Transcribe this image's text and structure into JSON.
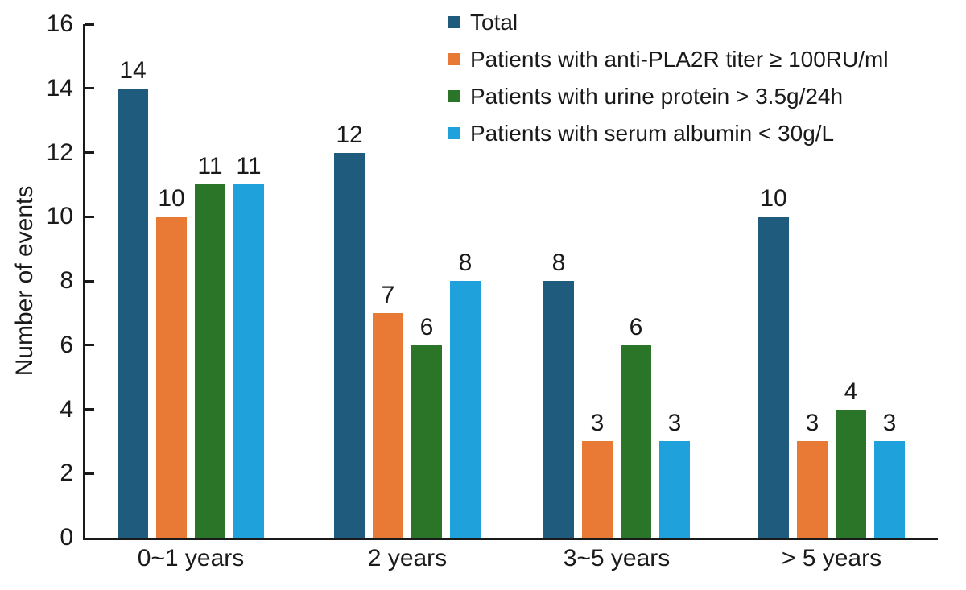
{
  "chart_data": {
    "type": "bar",
    "title": "",
    "ylabel": "Number of events",
    "xlabel": "",
    "ylim": [
      0,
      16
    ],
    "yticks": [
      0,
      2,
      4,
      6,
      8,
      10,
      12,
      14,
      16
    ],
    "categories": [
      "0~1 years",
      "2 years",
      "3~5 years",
      "> 5 years"
    ],
    "series": [
      {
        "name": "Total",
        "color": "#1e5b7d",
        "values": [
          14,
          12,
          8,
          10
        ]
      },
      {
        "name": "Patients with anti-PLA2R titer ≥ 100RU/ml",
        "color": "#e87a35",
        "values": [
          10,
          7,
          3,
          3
        ]
      },
      {
        "name": "Patients with urine protein > 3.5g/24h",
        "color": "#2a7528",
        "values": [
          11,
          6,
          6,
          4
        ]
      },
      {
        "name": "Patients with serum albumin < 30g/L",
        "color": "#1fa2dc",
        "values": [
          11,
          8,
          3,
          3
        ]
      }
    ],
    "legend_position": "top-right",
    "grid": false,
    "bar_value_labels": true,
    "axis_color": "#1a1a1a",
    "background": "#ffffff"
  }
}
